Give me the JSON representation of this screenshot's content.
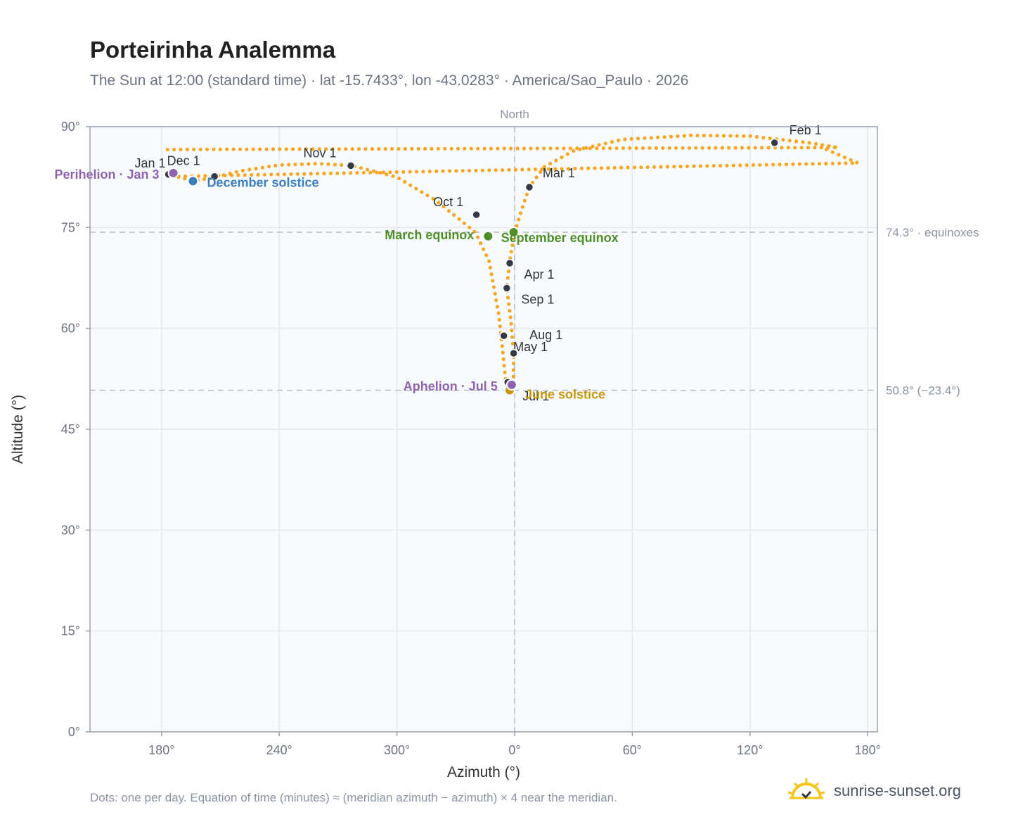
{
  "header": {
    "title": "Porteirinha Analemma",
    "subtitle": "The Sun at 12:00 (standard time) · lat -15.7433°, lon -43.0283° · America/Sao_Paulo · 2026"
  },
  "footer": {
    "note": "Dots: one per day. Equation of time (minutes) ≈ (meridian azimuth − azimuth) × 4 near the meridian.",
    "brand": "sunrise-sunset.org"
  },
  "colors": {
    "curve": "#f5a623",
    "month_dot": "#333a45",
    "equinox": "#4f8f2a",
    "december": "#3a7ec2",
    "june": "#c8960c",
    "apsis": "#8f63b0",
    "plot_bg": "#f8fbfd",
    "grid": "#e3e8ee",
    "frame": "#99a3ae"
  },
  "chart_data": {
    "type": "scatter",
    "title": "Porteirinha Analemma",
    "xlabel": "Azimuth (°)",
    "ylabel": "Altitude (°)",
    "xlim": [
      150,
      185
    ],
    "x_axis_note": "azimuth axis centered on North (0°), runs 150° → 360°/0° → 185°",
    "ylim": [
      0,
      90
    ],
    "grid": true,
    "x_ticks": [
      "180°",
      "240°",
      "300°",
      "0°",
      "60°",
      "120°",
      "180°"
    ],
    "y_ticks": [
      "0°",
      "15°",
      "30°",
      "45°",
      "60°",
      "75°",
      "90°"
    ],
    "north_label": "North",
    "reference_lines": [
      {
        "altitude": 74.3,
        "label": "74.3° · equinoxes"
      },
      {
        "altitude": 50.8,
        "label": "50.8° (−23.4°)"
      }
    ],
    "curve_keypoints": [
      {
        "az": 159,
        "alt": 86.6
      },
      {
        "az": 175,
        "alt": 84.6
      },
      {
        "az": 187,
        "alt": 82.6
      },
      {
        "az": 196,
        "alt": 82.0
      },
      {
        "az": 205,
        "alt": 82.3
      },
      {
        "az": 220,
        "alt": 83.4
      },
      {
        "az": 240,
        "alt": 84.3
      },
      {
        "az": 260,
        "alt": 84.5
      },
      {
        "az": 277,
        "alt": 84.2
      },
      {
        "az": 300,
        "alt": 82.5
      },
      {
        "az": 320,
        "alt": 79.0
      },
      {
        "az": 340,
        "alt": 74.3
      },
      {
        "az": 347,
        "alt": 70.0
      },
      {
        "az": 352,
        "alt": 62.0
      },
      {
        "az": 354.5,
        "alt": 55.0
      },
      {
        "az": 355.5,
        "alt": 52.0
      },
      {
        "az": 357.6,
        "alt": 50.8
      },
      {
        "az": 359.3,
        "alt": 52.5
      },
      {
        "az": 359.5,
        "alt": 56.0
      },
      {
        "az": 358.2,
        "alt": 61.0
      },
      {
        "az": 356.0,
        "alt": 66.0
      },
      {
        "az": 357.5,
        "alt": 70.0
      },
      {
        "az": 0.0,
        "alt": 74.3
      },
      {
        "az": 4,
        "alt": 78.0
      },
      {
        "az": 7.5,
        "alt": 81.0
      },
      {
        "az": 15,
        "alt": 84.0
      },
      {
        "az": 30,
        "alt": 86.4
      },
      {
        "az": 55,
        "alt": 88.1
      },
      {
        "az": 90,
        "alt": 88.7
      },
      {
        "az": 120,
        "alt": 88.6
      },
      {
        "az": 150,
        "alt": 87.6
      },
      {
        "az": 165,
        "alt": 86.9
      },
      {
        "az": 183,
        "alt": 86.6
      }
    ],
    "month_points": [
      {
        "label": "Jan 1",
        "az": 183.5,
        "alt": 82.9
      },
      {
        "label": "Feb 1",
        "az": 132.5,
        "alt": 87.6
      },
      {
        "label": "Mar 1",
        "az": 7.5,
        "alt": 81.0
      },
      {
        "label": "Apr 1",
        "az": 357.5,
        "alt": 69.7
      },
      {
        "label": "May 1",
        "az": 354.5,
        "alt": 58.9
      },
      {
        "label": "Jul 1",
        "az": 356.5,
        "alt": 52.0
      },
      {
        "label": "Aug 1",
        "az": 359.5,
        "alt": 56.3
      },
      {
        "label": "Sep 1",
        "az": 356.0,
        "alt": 66.0
      },
      {
        "label": "Oct 1",
        "az": 340.5,
        "alt": 76.9
      },
      {
        "label": "Nov 1",
        "az": 276.5,
        "alt": 84.2
      },
      {
        "label": "Dec 1",
        "az": 207.0,
        "alt": 82.6
      }
    ],
    "events": [
      {
        "label": "March equinox",
        "az": 346.5,
        "alt": 73.7,
        "kind": "equinox"
      },
      {
        "label": "September equinox",
        "az": 359.5,
        "alt": 74.3,
        "kind": "equinox"
      },
      {
        "label": "December solstice",
        "az": 196.0,
        "alt": 81.9,
        "kind": "december"
      },
      {
        "label": "June solstice",
        "az": 357.5,
        "alt": 50.8,
        "kind": "june"
      },
      {
        "label": "Perihelion · Jan 3",
        "az": 186.0,
        "alt": 83.1,
        "kind": "apsis"
      },
      {
        "label": "Aphelion · Jul 5",
        "az": 358.5,
        "alt": 51.6,
        "kind": "apsis"
      }
    ]
  }
}
